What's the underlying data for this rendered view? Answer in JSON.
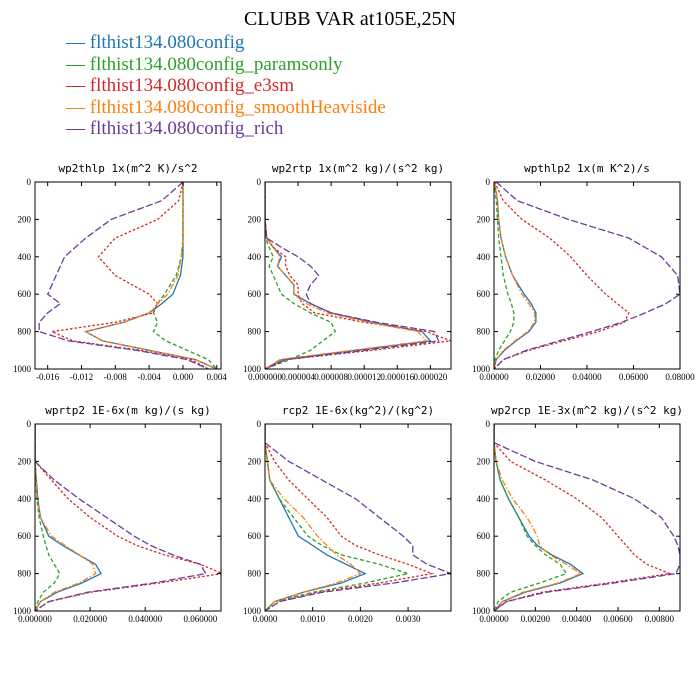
{
  "title": "CLUBB VAR at105E,25N",
  "legend": [
    {
      "label": "flthist134.080config",
      "color": "#1f77b4"
    },
    {
      "label": "flthist134.080config_paramsonly",
      "color": "#2ca02c"
    },
    {
      "label": "flthist134.080config_e3sm",
      "color": "#d62728"
    },
    {
      "label": "flthist134.080config_smoothHeaviside",
      "color": "#ff7f0e"
    },
    {
      "label": "flthist134.080config_rich",
      "color": "#6a3d9a"
    }
  ],
  "chart_data": [
    {
      "type": "line",
      "title": "wp2thlp  1x(m^2 K)/s^2",
      "xlim": [
        -0.0175,
        0.0045
      ],
      "xticks": [
        "-0.016",
        "-0.012",
        "-0.008",
        "-0.004",
        "0.000",
        "0.004"
      ],
      "xtick_values": [
        -0.016,
        -0.012,
        -0.008,
        -0.004,
        0.0,
        0.004
      ],
      "ylim": [
        1000,
        0
      ],
      "yticks": [
        "0",
        "200",
        "400",
        "600",
        "800",
        "1000"
      ],
      "y": [
        0,
        100,
        200,
        300,
        400,
        500,
        600,
        650,
        700,
        750,
        800,
        850,
        900,
        950,
        1000
      ],
      "series": [
        {
          "values": [
            0.0,
            0.0,
            0.0,
            0.0,
            0.0,
            -0.0003,
            -0.0012,
            -0.0025,
            -0.004,
            -0.007,
            -0.0115,
            -0.0095,
            -0.004,
            0.0015,
            0.004
          ]
        },
        {
          "values": [
            0.0,
            0.0,
            0.0,
            0.0,
            -0.0002,
            -0.0008,
            -0.0022,
            -0.003,
            -0.0035,
            -0.003,
            -0.0035,
            -0.002,
            0.0005,
            0.003,
            0.004
          ]
        },
        {
          "values": [
            0.0,
            -0.0005,
            -0.003,
            -0.008,
            -0.01,
            -0.008,
            -0.004,
            -0.003,
            -0.0035,
            -0.008,
            -0.0155,
            -0.013,
            -0.005,
            0.001,
            0.003
          ]
        },
        {
          "values": [
            0.0,
            0.0,
            0.0,
            0.0,
            -0.0002,
            -0.0006,
            -0.0018,
            -0.003,
            -0.004,
            -0.007,
            -0.0115,
            -0.0095,
            -0.004,
            0.0015,
            0.004
          ]
        },
        {
          "values": [
            0.0,
            -0.0025,
            -0.0085,
            -0.0115,
            -0.014,
            -0.015,
            -0.016,
            -0.0145,
            -0.016,
            -0.017,
            -0.017,
            -0.0135,
            -0.0055,
            0.0005,
            0.003
          ]
        }
      ]
    },
    {
      "type": "line",
      "title": "wp2rtp  1x(m^2 kg)/(s^2 kg)",
      "xlim": [
        0,
        2.25e-05
      ],
      "xticks": [
        "0.000000",
        "0.000004",
        "0.000008",
        "0.000012",
        "0.000016",
        "0.000020"
      ],
      "xtick_values": [
        0,
        4e-06,
        8e-06,
        1.2e-05,
        1.6e-05,
        2e-05
      ],
      "ylim": [
        1000,
        0
      ],
      "yticks": [
        "0",
        "200",
        "400",
        "600",
        "800",
        "1000"
      ],
      "y": [
        0,
        100,
        200,
        300,
        350,
        400,
        450,
        500,
        550,
        600,
        650,
        700,
        750,
        800,
        850,
        900,
        950,
        1000
      ],
      "series": [
        {
          "values": [
            0.0,
            0.0,
            0.0,
            2e-07,
            1e-06,
            2e-06,
            1.5e-06,
            2.5e-06,
            3.5e-06,
            3.5e-06,
            5.5e-06,
            8e-06,
            1.3e-05,
            1.9e-05,
            2e-05,
            1.1e-05,
            2e-06,
            0.0
          ]
        },
        {
          "values": [
            0.0,
            0.0,
            0.0,
            1e-07,
            5e-07,
            1e-06,
            5e-07,
            1e-06,
            1.5e-06,
            2e-06,
            3.5e-06,
            5.5e-06,
            8e-06,
            8.5e-06,
            7e-06,
            5.5e-06,
            3e-06,
            0.0
          ]
        },
        {
          "values": [
            0.0,
            0.0,
            0.0,
            2e-07,
            1e-06,
            2.5e-06,
            2.5e-06,
            3e-06,
            4e-06,
            4e-06,
            4.5e-06,
            6e-06,
            1.2e-05,
            1.95e-05,
            2.25e-05,
            1.3e-05,
            2.5e-06,
            0.0
          ]
        },
        {
          "values": [
            0.0,
            0.0,
            0.0,
            2e-07,
            1e-06,
            1.8e-06,
            1.5e-06,
            2.5e-06,
            3.5e-06,
            3.5e-06,
            5e-06,
            7.5e-06,
            1.25e-05,
            1.85e-05,
            1.95e-05,
            1.05e-05,
            1.8e-06,
            0.0
          ]
        },
        {
          "values": [
            0.0,
            0.0,
            0.0,
            2e-07,
            2e-06,
            4e-06,
            5.5e-06,
            6.5e-06,
            5.5e-06,
            5e-06,
            5.5e-06,
            8e-06,
            1.35e-05,
            2.05e-05,
            2.1e-05,
            1.2e-05,
            2.5e-06,
            0.0
          ]
        }
      ]
    },
    {
      "type": "line",
      "title": "wpthlp2  1x(m K^2)/s",
      "xlim": [
        0,
        0.08
      ],
      "xticks": [
        "0.00000",
        "0.02000",
        "0.04000",
        "0.06000",
        "0.08000"
      ],
      "xtick_values": [
        0,
        0.02,
        0.04,
        0.06,
        0.08
      ],
      "ylim": [
        1000,
        0
      ],
      "yticks": [
        "0",
        "200",
        "400",
        "600",
        "800",
        "1000"
      ],
      "y": [
        0,
        100,
        200,
        300,
        400,
        500,
        600,
        650,
        700,
        750,
        800,
        850,
        900,
        950,
        1000
      ],
      "series": [
        {
          "values": [
            0.0002,
            0.0015,
            0.002,
            0.003,
            0.005,
            0.008,
            0.013,
            0.016,
            0.018,
            0.018,
            0.015,
            0.0095,
            0.0045,
            0.001,
            0.0
          ]
        },
        {
          "values": [
            0.0001,
            0.001,
            0.0015,
            0.002,
            0.003,
            0.004,
            0.006,
            0.0075,
            0.0085,
            0.0085,
            0.007,
            0.0045,
            0.002,
            0.0005,
            0.0
          ]
        },
        {
          "values": [
            0.0003,
            0.004,
            0.012,
            0.024,
            0.033,
            0.04,
            0.048,
            0.053,
            0.058,
            0.056,
            0.045,
            0.03,
            0.015,
            0.004,
            0.0
          ]
        },
        {
          "values": [
            0.0002,
            0.0015,
            0.002,
            0.003,
            0.005,
            0.008,
            0.012,
            0.015,
            0.0175,
            0.0175,
            0.0145,
            0.009,
            0.004,
            0.001,
            0.0
          ]
        },
        {
          "values": [
            0.001,
            0.01,
            0.032,
            0.058,
            0.072,
            0.079,
            0.08,
            0.074,
            0.065,
            0.055,
            0.042,
            0.028,
            0.014,
            0.004,
            0.0
          ]
        }
      ]
    },
    {
      "type": "line",
      "title": "wprtp2  1E-6x(m kg)/(s kg)",
      "xlim": [
        0,
        0.0675
      ],
      "xticks": [
        "0.000000",
        "0.020000",
        "0.040000",
        "0.060000"
      ],
      "xtick_values": [
        0,
        0.02,
        0.04,
        0.06
      ],
      "ylim": [
        1000,
        0
      ],
      "yticks": [
        "0",
        "200",
        "400",
        "600",
        "800",
        "1000"
      ],
      "y": [
        0,
        100,
        200,
        300,
        400,
        500,
        600,
        650,
        700,
        750,
        800,
        850,
        900,
        950,
        1000
      ],
      "series": [
        {
          "values": [
            0.0,
            0.0,
            0.0,
            0.0005,
            0.001,
            0.002,
            0.005,
            0.01,
            0.016,
            0.022,
            0.024,
            0.017,
            0.008,
            0.002,
            0.0
          ]
        },
        {
          "values": [
            0.0,
            0.0,
            0.0,
            0.0003,
            0.0007,
            0.0015,
            0.003,
            0.004,
            0.005,
            0.007,
            0.009,
            0.007,
            0.003,
            0.001,
            0.0
          ]
        },
        {
          "values": [
            0.0,
            0.0,
            0.0,
            0.006,
            0.012,
            0.02,
            0.03,
            0.037,
            0.047,
            0.06,
            0.068,
            0.045,
            0.02,
            0.005,
            0.0
          ]
        },
        {
          "values": [
            0.0,
            0.0,
            0.0,
            0.0004,
            0.0008,
            0.002,
            0.006,
            0.011,
            0.016,
            0.021,
            0.022,
            0.016,
            0.007,
            0.002,
            0.0
          ]
        },
        {
          "values": [
            0.0,
            0.0,
            0.0,
            0.007,
            0.016,
            0.026,
            0.036,
            0.042,
            0.05,
            0.06,
            0.062,
            0.043,
            0.019,
            0.005,
            0.0
          ]
        }
      ]
    },
    {
      "type": "line",
      "title": "rcp2  1E-6x(kg^2)/(kg^2)",
      "xlim": [
        0,
        0.0039
      ],
      "xticks": [
        "0.0000",
        "0.0010",
        "0.0020",
        "0.0030"
      ],
      "xtick_values": [
        0,
        0.001,
        0.002,
        0.003
      ],
      "ylim": [
        1000,
        0
      ],
      "yticks": [
        "0",
        "200",
        "400",
        "600",
        "800",
        "1000"
      ],
      "y": [
        0,
        100,
        200,
        300,
        400,
        500,
        600,
        650,
        700,
        750,
        800,
        850,
        900,
        950,
        1000
      ],
      "series": [
        {
          "values": [
            0.0,
            0.0,
            5e-05,
            0.0001,
            0.0003,
            0.0005,
            0.0007,
            0.001,
            0.0013,
            0.0017,
            0.0021,
            0.0016,
            0.0008,
            0.0002,
            0.0
          ]
        },
        {
          "values": [
            0.0,
            0.0,
            5e-05,
            0.0001,
            0.0003,
            0.0006,
            0.0009,
            0.0012,
            0.0016,
            0.0024,
            0.003,
            0.0021,
            0.001,
            0.0002,
            0.0
          ]
        },
        {
          "values": [
            0.0,
            0.0,
            0.0002,
            0.0005,
            0.0009,
            0.0013,
            0.0016,
            0.0019,
            0.0024,
            0.003,
            0.0035,
            0.0024,
            0.0011,
            0.0003,
            0.0
          ]
        },
        {
          "values": [
            0.0,
            0.0,
            5e-05,
            0.0001,
            0.0004,
            0.0008,
            0.0011,
            0.0013,
            0.0015,
            0.0018,
            0.002,
            0.0015,
            0.0008,
            0.0002,
            0.0
          ]
        },
        {
          "values": [
            0.0,
            0.0,
            0.0005,
            0.0012,
            0.0019,
            0.0024,
            0.0029,
            0.0031,
            0.0031,
            0.0034,
            0.0039,
            0.0027,
            0.0012,
            0.0003,
            0.0
          ]
        }
      ]
    },
    {
      "type": "line",
      "title": "wp2rcp  1E-3x(m^2 kg)/(s^2 kg)",
      "xlim": [
        0,
        0.009
      ],
      "xticks": [
        "0.00000",
        "0.00200",
        "0.00400",
        "0.00600",
        "0.00800"
      ],
      "xtick_values": [
        0,
        0.002,
        0.004,
        0.006,
        0.008
      ],
      "ylim": [
        1000,
        0
      ],
      "yticks": [
        "0",
        "200",
        "400",
        "600",
        "800",
        "1000"
      ],
      "y": [
        0,
        100,
        200,
        300,
        400,
        500,
        600,
        650,
        700,
        750,
        800,
        850,
        900,
        950,
        1000
      ],
      "series": [
        {
          "values": [
            0.0,
            0.0,
            0.0001,
            0.0003,
            0.0007,
            0.0012,
            0.0017,
            0.0021,
            0.0028,
            0.0037,
            0.0043,
            0.0032,
            0.0015,
            0.0004,
            0.0
          ]
        },
        {
          "values": [
            0.0,
            0.0,
            0.0001,
            0.0003,
            0.0007,
            0.0012,
            0.0016,
            0.002,
            0.0025,
            0.0032,
            0.0035,
            0.0022,
            0.0008,
            0.0002,
            0.0
          ]
        },
        {
          "values": [
            0.0,
            0.0,
            0.0008,
            0.0025,
            0.004,
            0.0052,
            0.006,
            0.0064,
            0.0068,
            0.0074,
            0.0085,
            0.0055,
            0.0023,
            0.0006,
            0.0
          ]
        },
        {
          "values": [
            0.0,
            0.0,
            0.0001,
            0.0004,
            0.0009,
            0.0016,
            0.0021,
            0.0022,
            0.0027,
            0.0035,
            0.0042,
            0.0031,
            0.0014,
            0.0004,
            0.0
          ]
        },
        {
          "values": [
            0.0,
            0.0,
            0.002,
            0.0048,
            0.0068,
            0.0081,
            0.0087,
            0.0089,
            0.009,
            0.009,
            0.0088,
            0.0058,
            0.0025,
            0.0006,
            0.0
          ]
        }
      ]
    }
  ]
}
